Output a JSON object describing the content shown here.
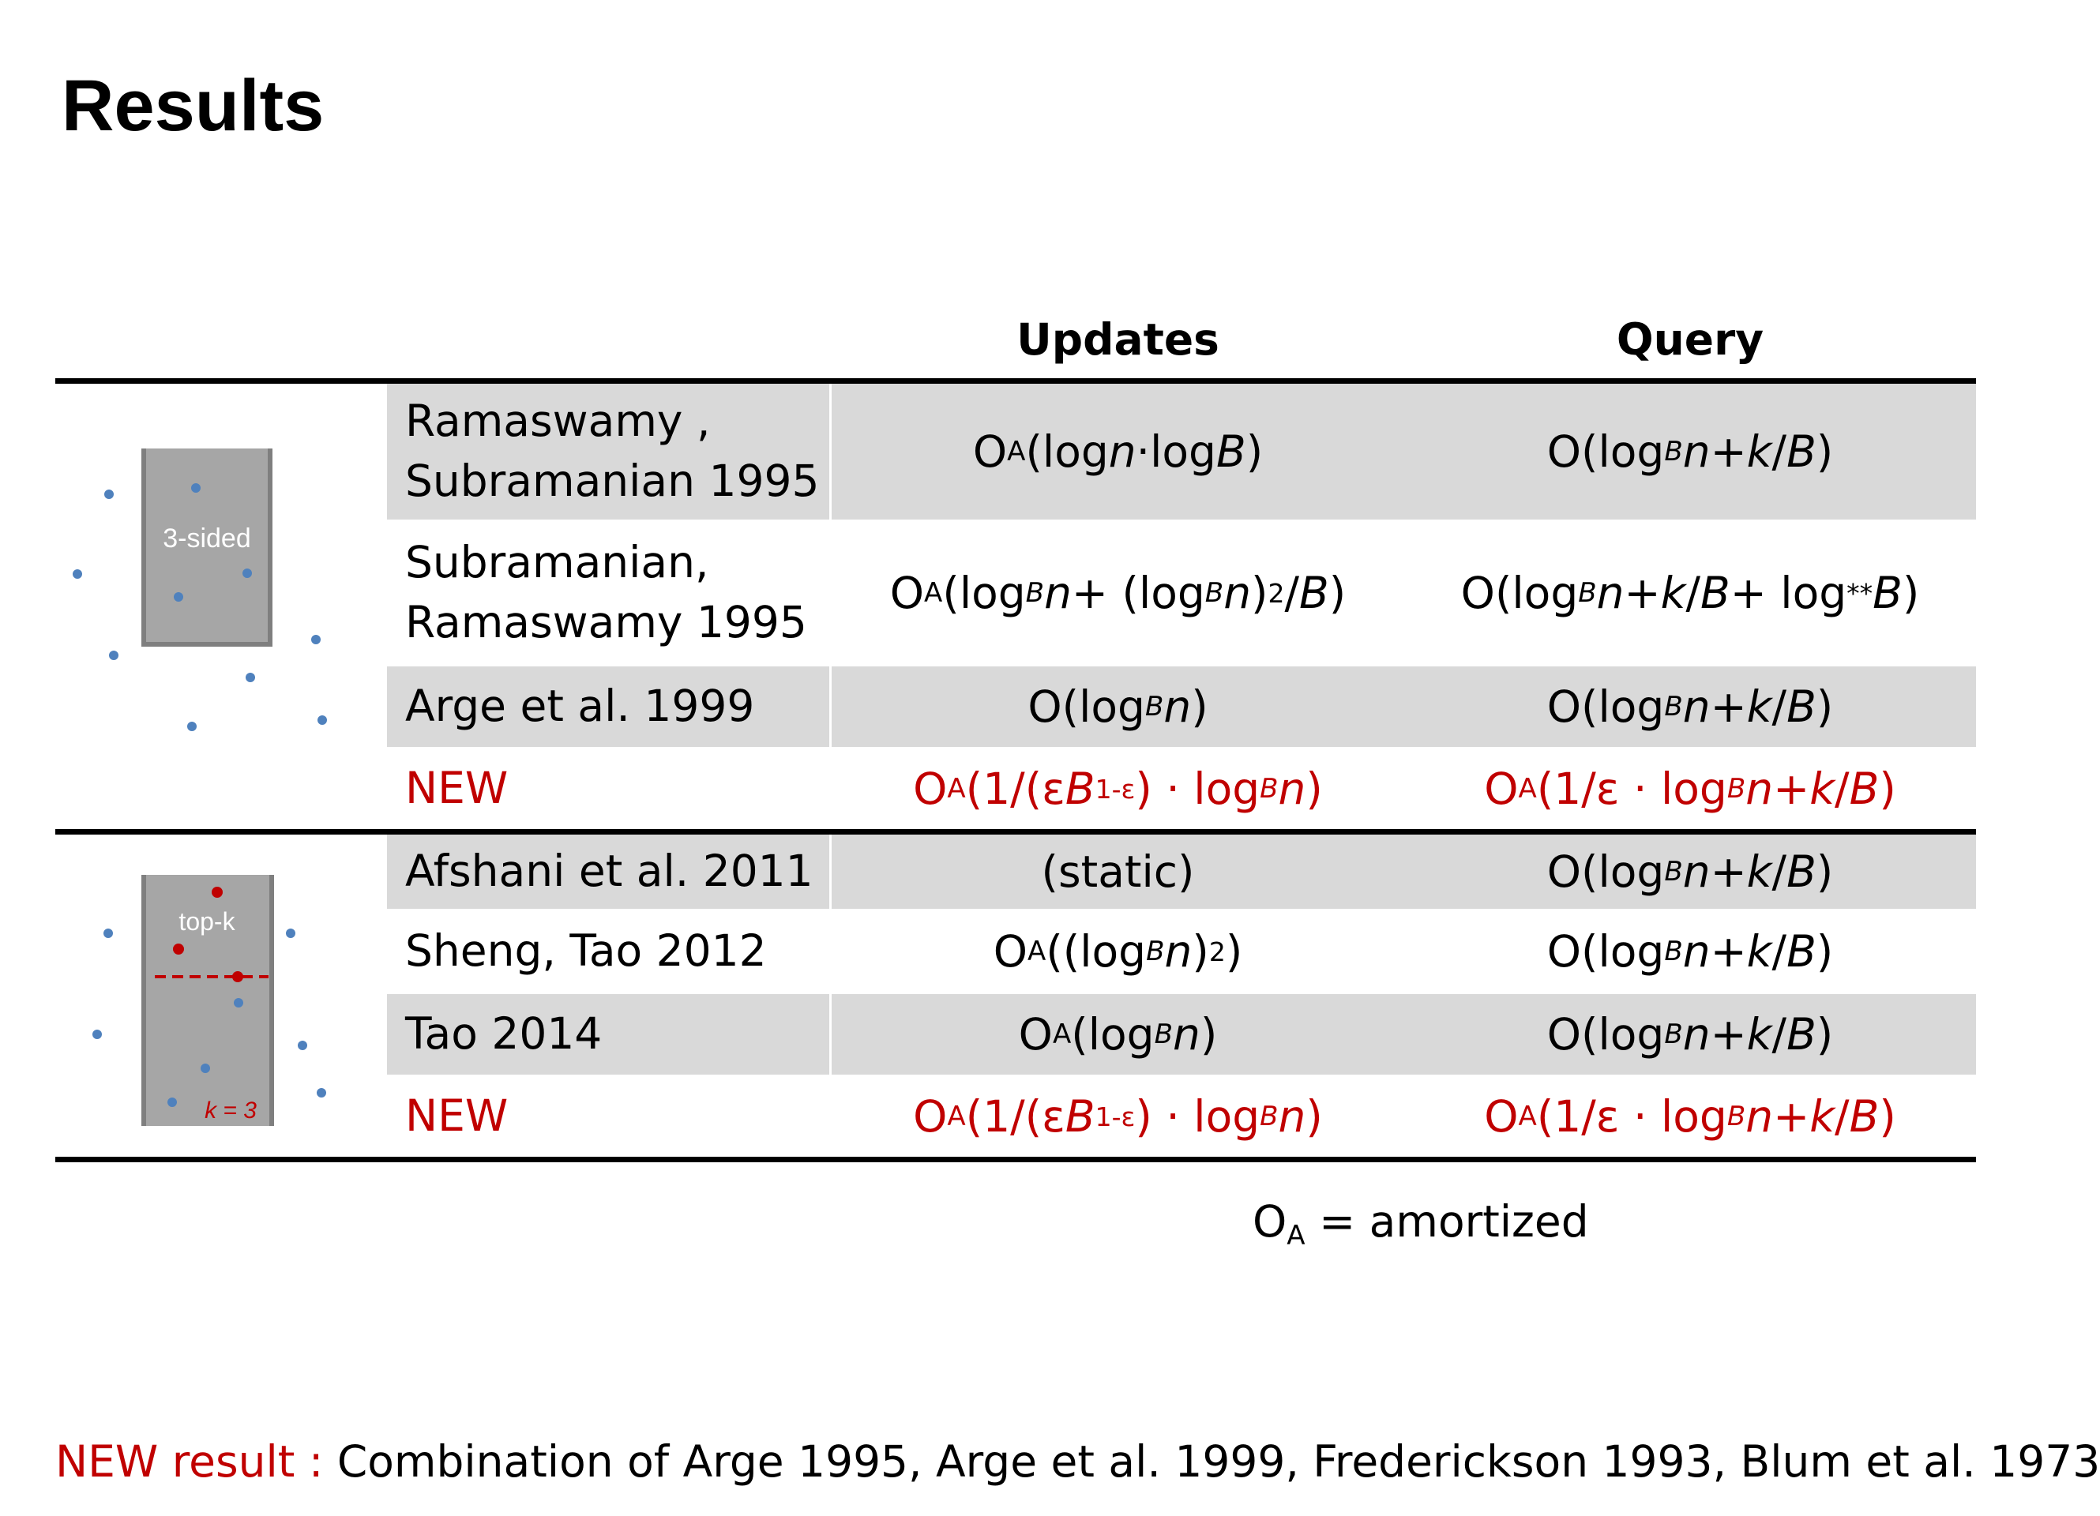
{
  "title": "Results",
  "columns": {
    "updates": "Updates",
    "query": "Query"
  },
  "figures": {
    "three_sided": {
      "label": "3-sided"
    },
    "top_k": {
      "label": "top-k",
      "k_label": "k = 3"
    }
  },
  "section1": [
    {
      "ref_line1": "Ramaswamy ,",
      "ref_line2": "Subramanian 1995",
      "updates": "OA(log n·log B)",
      "query": "O(logB n + k/B)"
    },
    {
      "ref_line1": "Subramanian,",
      "ref_line2": "Ramaswamy 1995",
      "updates": "OA(logB n + (logB n)2/B)",
      "query": "O(logB n + k/B + log** B)"
    },
    {
      "ref": "Arge et al. 1999",
      "updates": "O(logB n)",
      "query": "O(logB n + k/B)"
    },
    {
      "ref": "NEW",
      "updates": "OA(1/(εB1-ε) · logB n)",
      "query": "OA (1/ε · logB n + k/B)"
    }
  ],
  "section2": [
    {
      "ref": "Afshani et al. 2011",
      "updates": "(static)",
      "query": "O(logB n + k/B)"
    },
    {
      "ref": "Sheng, Tao 2012",
      "updates": "OA((logB n)2)",
      "query": "O(logB n + k/B)"
    },
    {
      "ref": "Tao 2014",
      "updates": "OA(logB n)",
      "query": "O(logB n + k/B)"
    },
    {
      "ref": "NEW",
      "updates": "OA(1/(εB1-ε) · logB n)",
      "query": "OA(1/ε · logB n + k/B)"
    }
  ],
  "legend": "OA = amortized",
  "footer": {
    "label": "NEW result :",
    "text": "Combination of Arge 1995, Arge et al. 1999, Frederickson 1993, Blum et al. 1973"
  },
  "colors": {
    "new": "#c00000",
    "row_shade": "#d9d9d9",
    "point_blue": "#4f81bd",
    "box_gray": "#a6a6a6"
  }
}
